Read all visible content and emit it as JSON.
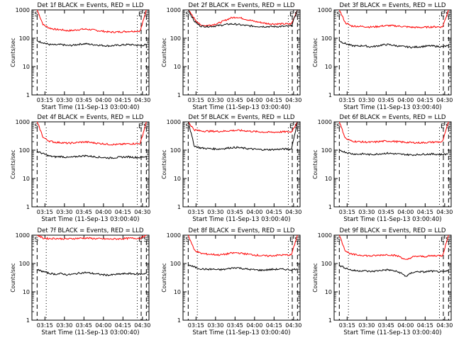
{
  "chart_data": [
    {
      "type": "line",
      "title": "Det 1f BLACK = Events, RED = LLD",
      "xlabel": "Start Time (11-Sep-13 03:00:40)",
      "ylabel": "Counts/sec",
      "yscale": "log",
      "ylim": [
        1,
        1000
      ],
      "xlim": [
        "03:05",
        "04:35"
      ],
      "x_ticks": [
        "03:15",
        "03:30",
        "03:45",
        "04:00",
        "04:15",
        "04:30"
      ],
      "y_ticks": [
        "1",
        "10",
        "100",
        "1000"
      ],
      "markers": {
        "S_left": "S",
        "E_right": "E",
        "S_right": "S"
      },
      "dashed_lines": [
        "03:09",
        "04:29",
        "04:33"
      ],
      "dotted_lines": [
        "03:16",
        "04:26"
      ],
      "series": [
        {
          "color": "#ff0000",
          "values": [
            1000,
            300,
            230,
            205,
            200,
            185,
            190,
            205,
            210,
            200,
            185,
            175,
            165,
            165,
            170,
            175,
            178,
            180,
            1000
          ]
        },
        {
          "color": "#000000",
          "values": [
            80,
            70,
            60,
            58,
            60,
            55,
            57,
            62,
            64,
            60,
            58,
            55,
            54,
            56,
            58,
            60,
            58,
            55,
            60
          ]
        }
      ]
    },
    {
      "type": "line",
      "title": "Det 2f BLACK = Events, RED = LLD",
      "xlabel": "Start Time (11-Sep-13 03:00:40)",
      "ylabel": "Counts/sec",
      "yscale": "log",
      "ylim": [
        1,
        1000
      ],
      "xlim": [
        "03:05",
        "04:35"
      ],
      "x_ticks": [
        "03:15",
        "03:30",
        "03:45",
        "04:00",
        "04:15",
        "04:30"
      ],
      "y_ticks": [
        "1",
        "10",
        "100",
        "1000"
      ],
      "markers": {
        "S_left": "S",
        "E_right": "E",
        "S_right": "S"
      },
      "dashed_lines": [
        "03:09",
        "04:29",
        "04:33"
      ],
      "dotted_lines": [
        "03:16",
        "04:26"
      ],
      "series": [
        {
          "color": "#ff0000",
          "values": [
            1000,
            500,
            290,
            280,
            300,
            340,
            420,
            520,
            560,
            500,
            440,
            390,
            360,
            330,
            320,
            320,
            320,
            320,
            1000
          ]
        },
        {
          "color": "#000000",
          "values": [
            1000,
            400,
            270,
            260,
            265,
            280,
            300,
            320,
            310,
            290,
            275,
            265,
            260,
            258,
            258,
            260,
            262,
            270,
            1000
          ]
        }
      ]
    },
    {
      "type": "line",
      "title": "Det 3f BLACK = Events, RED = LLD",
      "xlabel": "Start Time (11-Sep-13 03:00:40)",
      "ylabel": "Counts/sec",
      "yscale": "log",
      "ylim": [
        1,
        1000
      ],
      "xlim": [
        "03:05",
        "04:35"
      ],
      "x_ticks": [
        "03:15",
        "03:30",
        "03:45",
        "04:00",
        "04:15",
        "04:30"
      ],
      "y_ticks": [
        "1",
        "10",
        "100",
        "1000"
      ],
      "markers": {
        "S_left": "S",
        "E_right": "E",
        "S_right": "S"
      },
      "dashed_lines": [
        "03:09",
        "04:29",
        "04:33"
      ],
      "dotted_lines": [
        "03:16",
        "04:26"
      ],
      "series": [
        {
          "color": "#ff0000",
          "values": [
            1000,
            350,
            270,
            265,
            260,
            250,
            255,
            270,
            280,
            275,
            265,
            255,
            245,
            240,
            245,
            250,
            255,
            250,
            1000
          ]
        },
        {
          "color": "#000000",
          "values": [
            80,
            65,
            55,
            53,
            55,
            50,
            52,
            58,
            60,
            56,
            52,
            50,
            48,
            50,
            52,
            54,
            52,
            50,
            55
          ]
        }
      ]
    },
    {
      "type": "line",
      "title": "Det 4f BLACK = Events, RED = LLD",
      "xlabel": "Start Time (11-Sep-13 03:00:40)",
      "ylabel": "Counts/sec",
      "yscale": "log",
      "ylim": [
        1,
        1000
      ],
      "xlim": [
        "03:05",
        "04:35"
      ],
      "x_ticks": [
        "03:15",
        "03:30",
        "03:45",
        "04:00",
        "04:15",
        "04:30"
      ],
      "y_ticks": [
        "1",
        "10",
        "100",
        "1000"
      ],
      "markers": {
        "S_left": "S",
        "E_right": "E",
        "S_right": "S"
      },
      "dashed_lines": [
        "03:09",
        "04:29",
        "04:33"
      ],
      "dotted_lines": [
        "03:16",
        "04:26"
      ],
      "series": [
        {
          "color": "#ff0000",
          "values": [
            1000,
            280,
            210,
            190,
            185,
            175,
            180,
            190,
            195,
            185,
            175,
            168,
            160,
            158,
            162,
            168,
            170,
            172,
            1000
          ]
        },
        {
          "color": "#000000",
          "values": [
            90,
            75,
            62,
            58,
            60,
            55,
            57,
            62,
            64,
            60,
            57,
            55,
            53,
            55,
            57,
            58,
            56,
            55,
            60
          ]
        }
      ]
    },
    {
      "type": "line",
      "title": "Det 5f BLACK = Events, RED = LLD",
      "xlabel": "Start Time (11-Sep-13 03:00:40)",
      "ylabel": "Counts/sec",
      "yscale": "log",
      "ylim": [
        1,
        1000
      ],
      "xlim": [
        "03:05",
        "04:35"
      ],
      "x_ticks": [
        "03:15",
        "03:30",
        "03:45",
        "04:00",
        "04:15",
        "04:30"
      ],
      "y_ticks": [
        "1",
        "10",
        "100",
        "1000"
      ],
      "markers": {
        "S_left": "S",
        "E_right": "E",
        "S_right": "S"
      },
      "dashed_lines": [
        "03:09",
        "04:29",
        "04:33"
      ],
      "dotted_lines": [
        "03:16",
        "04:26"
      ],
      "series": [
        {
          "color": "#ff0000",
          "values": [
            1000,
            520,
            480,
            470,
            465,
            460,
            470,
            490,
            500,
            490,
            470,
            455,
            440,
            430,
            430,
            440,
            445,
            440,
            1000
          ]
        },
        {
          "color": "#000000",
          "values": [
            1000,
            140,
            120,
            115,
            112,
            110,
            115,
            122,
            125,
            118,
            112,
            108,
            105,
            104,
            105,
            108,
            110,
            108,
            1000
          ]
        }
      ]
    },
    {
      "type": "line",
      "title": "Det 6f BLACK = Events, RED = LLD",
      "xlabel": "Start Time (11-Sep-13 03:00:40)",
      "ylabel": "Counts/sec",
      "yscale": "log",
      "ylim": [
        1,
        1000
      ],
      "xlim": [
        "03:05",
        "04:35"
      ],
      "x_ticks": [
        "03:15",
        "03:30",
        "03:45",
        "04:00",
        "04:15",
        "04:30"
      ],
      "y_ticks": [
        "1",
        "10",
        "100",
        "1000"
      ],
      "markers": {
        "S_left": "S",
        "E_right": "E",
        "S_right": "S"
      },
      "dashed_lines": [
        "03:09",
        "04:29",
        "04:33"
      ],
      "dotted_lines": [
        "03:16",
        "04:26"
      ],
      "series": [
        {
          "color": "#ff0000",
          "values": [
            1000,
            260,
            210,
            200,
            195,
            190,
            195,
            205,
            210,
            205,
            195,
            190,
            185,
            182,
            185,
            190,
            195,
            195,
            1000
          ]
        },
        {
          "color": "#000000",
          "values": [
            100,
            85,
            75,
            72,
            74,
            70,
            72,
            76,
            78,
            75,
            72,
            70,
            68,
            70,
            72,
            73,
            72,
            70,
            75
          ]
        }
      ]
    },
    {
      "type": "line",
      "title": "Det 7f BLACK = Events, RED = LLD",
      "xlabel": "Start Time (11-Sep-13 03:00:40)",
      "ylabel": "Counts/sec",
      "yscale": "log",
      "ylim": [
        1,
        1000
      ],
      "xlim": [
        "03:05",
        "04:35"
      ],
      "x_ticks": [
        "03:15",
        "03:30",
        "03:45",
        "04:00",
        "04:15",
        "04:30"
      ],
      "y_ticks": [
        "1",
        "10",
        "100",
        "1000"
      ],
      "markers": {
        "S_left": "S",
        "E_right": "E",
        "S_right": "S"
      },
      "dashed_lines": [
        "03:09",
        "04:29",
        "04:33"
      ],
      "dotted_lines": [
        "03:16",
        "04:26"
      ],
      "series": [
        {
          "color": "#ff0000",
          "values": [
            1000,
            780,
            760,
            770,
            750,
            740,
            760,
            780,
            790,
            770,
            750,
            740,
            730,
            740,
            750,
            770,
            780,
            780,
            1000
          ]
        },
        {
          "color": "#000000",
          "values": [
            60,
            52,
            45,
            42,
            44,
            40,
            42,
            46,
            48,
            45,
            42,
            40,
            39,
            41,
            43,
            44,
            43,
            42,
            45
          ]
        }
      ]
    },
    {
      "type": "line",
      "title": "Det 8f BLACK = Events, RED = LLD",
      "xlabel": "Start Time (11-Sep-13 03:00:40)",
      "ylabel": "Counts/sec",
      "yscale": "log",
      "ylim": [
        1,
        1000
      ],
      "xlim": [
        "03:05",
        "04:35"
      ],
      "x_ticks": [
        "03:15",
        "03:30",
        "03:45",
        "04:00",
        "04:15",
        "04:30"
      ],
      "y_ticks": [
        "1",
        "10",
        "100",
        "1000"
      ],
      "markers": {
        "S_left": "S",
        "E_right": "E",
        "S_right": "S"
      },
      "dashed_lines": [
        "03:09",
        "04:29",
        "04:33"
      ],
      "dotted_lines": [
        "03:16",
        "04:26"
      ],
      "series": [
        {
          "color": "#ff0000",
          "values": [
            1000,
            300,
            230,
            215,
            210,
            200,
            210,
            230,
            240,
            225,
            210,
            200,
            190,
            185,
            190,
            198,
            200,
            200,
            1000
          ]
        },
        {
          "color": "#000000",
          "values": [
            90,
            75,
            65,
            62,
            63,
            60,
            62,
            68,
            72,
            66,
            62,
            60,
            58,
            60,
            62,
            63,
            62,
            60,
            65
          ]
        }
      ]
    },
    {
      "type": "line",
      "title": "Det 9f BLACK = Events, RED = LLD",
      "xlabel": "Start Time (11-Sep-13 03:00:40)",
      "ylabel": "Counts/sec",
      "yscale": "log",
      "ylim": [
        1,
        1000
      ],
      "xlim": [
        "03:05",
        "04:35"
      ],
      "x_ticks": [
        "03:15",
        "03:30",
        "03:45",
        "04:00",
        "04:15",
        "04:30"
      ],
      "y_ticks": [
        "1",
        "10",
        "100",
        "1000"
      ],
      "markers": {
        "S_left": "S",
        "E_right": "E",
        "S_right": "S"
      },
      "dashed_lines": [
        "03:09",
        "04:29",
        "04:33"
      ],
      "dotted_lines": [
        "03:16",
        "04:26"
      ],
      "series": [
        {
          "color": "#ff0000",
          "values": [
            1000,
            280,
            210,
            200,
            195,
            185,
            190,
            200,
            205,
            195,
            175,
            130,
            170,
            180,
            175,
            185,
            190,
            190,
            1000
          ]
        },
        {
          "color": "#000000",
          "values": [
            85,
            70,
            58,
            55,
            56,
            52,
            54,
            58,
            60,
            55,
            48,
            35,
            48,
            52,
            50,
            54,
            52,
            50,
            55
          ]
        }
      ]
    }
  ]
}
